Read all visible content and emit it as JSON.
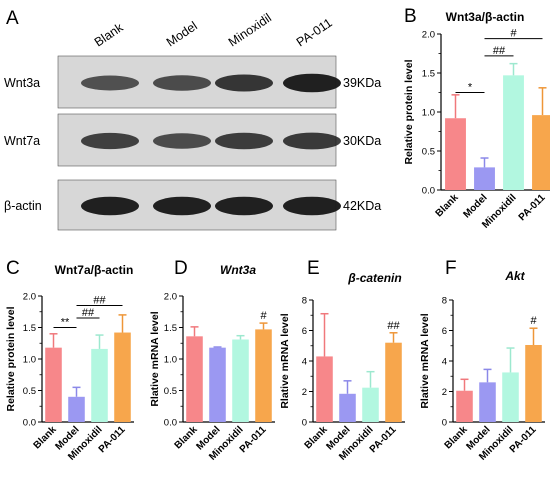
{
  "panels": {
    "A": {
      "letter": "A",
      "lanes": [
        "Blank",
        "Model",
        "Minoxidil",
        "PA-011"
      ],
      "rows": [
        {
          "label": "Wnt3a",
          "size": "39KDa",
          "intensity": [
            0.55,
            0.6,
            0.78,
            0.95
          ]
        },
        {
          "label": "Wnt7a",
          "size": "30KDa",
          "intensity": [
            0.7,
            0.6,
            0.72,
            0.75
          ]
        },
        {
          "label": "β-actin",
          "size": "42KDa",
          "intensity": [
            0.95,
            0.95,
            0.95,
            0.95
          ]
        }
      ]
    }
  },
  "chart_data": [
    {
      "letter": "B",
      "type": "bar",
      "title": "Wnt3a/β-actin",
      "title_italic": false,
      "ylabel": "Relative protein level",
      "categories": [
        "Blank",
        "Model",
        "Minoxidil",
        "PA-011"
      ],
      "values": [
        0.92,
        0.29,
        1.47,
        0.96
      ],
      "errors": [
        0.3,
        0.12,
        0.15,
        0.35
      ],
      "ylim": [
        0,
        2.0
      ],
      "yticks": [
        "0.0",
        "0.5",
        "1.0",
        "1.5",
        "2.0"
      ],
      "annotations": [
        {
          "text": "*",
          "from": 0,
          "to": 1,
          "y": 1.25,
          "kind": "bracket"
        },
        {
          "text": "##",
          "from": 1,
          "to": 2,
          "y": 1.72,
          "kind": "bracket"
        },
        {
          "text": "#",
          "from": 1,
          "to": 3,
          "y": 1.94,
          "kind": "bracket"
        }
      ]
    },
    {
      "letter": "C",
      "type": "bar",
      "title": "Wnt7a/β-actin",
      "title_italic": false,
      "ylabel": "Relative protein level",
      "categories": [
        "Blank",
        "Model",
        "Minoxidil",
        "PA-011"
      ],
      "values": [
        1.18,
        0.4,
        1.16,
        1.42
      ],
      "errors": [
        0.22,
        0.15,
        0.22,
        0.28
      ],
      "ylim": [
        0,
        2.0
      ],
      "yticks": [
        "0.0",
        "0.5",
        "1.0",
        "1.5",
        "2.0"
      ],
      "annotations": [
        {
          "text": "**",
          "from": 0,
          "to": 1,
          "y": 1.5,
          "kind": "bracket"
        },
        {
          "text": "##",
          "from": 1,
          "to": 2,
          "y": 1.65,
          "kind": "bracket"
        },
        {
          "text": "##",
          "from": 1,
          "to": 3,
          "y": 1.85,
          "kind": "bracket"
        }
      ]
    },
    {
      "letter": "D",
      "type": "bar",
      "title": "Wnt3a",
      "title_italic": true,
      "ylabel": "Rlative mRNA level",
      "categories": [
        "Blank",
        "Model",
        "Minoxidil",
        "PA-011"
      ],
      "values": [
        1.36,
        1.18,
        1.31,
        1.47
      ],
      "errors": [
        0.15,
        0.01,
        0.06,
        0.1
      ],
      "ylim": [
        0,
        2.0
      ],
      "yticks": [
        "0.0",
        "0.5",
        "1.0",
        "1.5",
        "2.0"
      ],
      "annotations": [
        {
          "text": "#",
          "bar": 3,
          "kind": "mark"
        }
      ]
    },
    {
      "letter": "E",
      "type": "bar",
      "title": "β-catenin",
      "title_italic": true,
      "ylabel": "Rlative mRNA level",
      "categories": [
        "Blank",
        "Model",
        "Minoxidil",
        "PA-011"
      ],
      "values": [
        4.3,
        1.85,
        2.25,
        5.2
      ],
      "errors": [
        2.8,
        0.85,
        1.05,
        0.65
      ],
      "ylim": [
        0,
        8
      ],
      "yticks": [
        "0",
        "2",
        "4",
        "6",
        "8"
      ],
      "annotations": [
        {
          "text": "##",
          "bar": 3,
          "kind": "mark"
        }
      ]
    },
    {
      "letter": "F",
      "type": "bar",
      "title": "Akt",
      "title_italic": true,
      "ylabel": "Rlative mRNA level",
      "categories": [
        "Blank",
        "Model",
        "Minoxidil",
        "PA-011"
      ],
      "values": [
        2.05,
        2.6,
        3.25,
        5.05
      ],
      "errors": [
        0.75,
        0.85,
        1.6,
        1.1
      ],
      "ylim": [
        0,
        8
      ],
      "yticks": [
        "0",
        "2",
        "4",
        "6",
        "8"
      ],
      "annotations": [
        {
          "text": "#",
          "bar": 3,
          "kind": "mark"
        }
      ]
    }
  ],
  "colors": {
    "bars": [
      "#f7878a",
      "#9b98f2",
      "#b2f7e0",
      "#f7a64c"
    ],
    "errors": [
      "#f0787c",
      "#8b88e8",
      "#9de8cf",
      "#ee9638"
    ],
    "axis": "#000000",
    "blot_bg": "#d7d7d7",
    "band": "#1a1a1a"
  }
}
